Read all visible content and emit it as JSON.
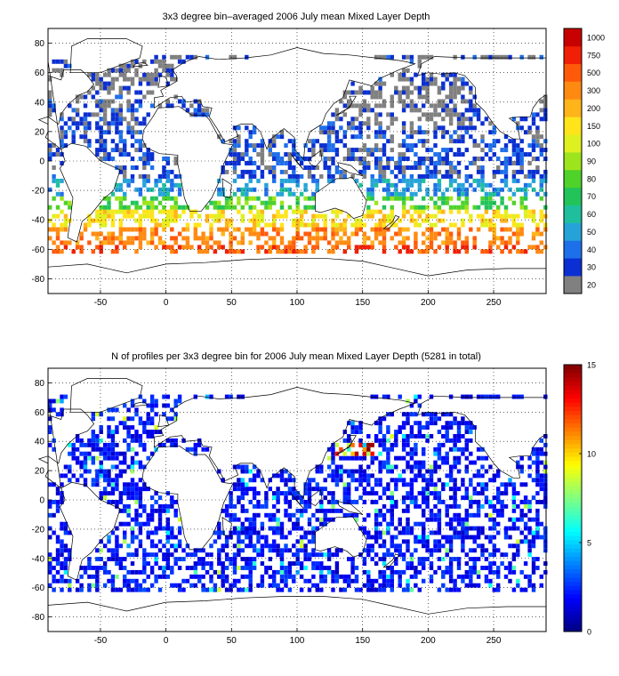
{
  "chart_data": [
    {
      "type": "heatmap",
      "title": "3x3 degree bin–averaged 2006 July mean Mixed Layer Depth",
      "xlabel": "",
      "ylabel": "",
      "xlim": [
        -90,
        290
      ],
      "ylim": [
        -90,
        90
      ],
      "x_ticks": [
        -50,
        0,
        50,
        100,
        150,
        200,
        250
      ],
      "y_ticks": [
        80,
        60,
        40,
        20,
        0,
        -20,
        -40,
        -60,
        -80
      ],
      "grid": true,
      "bin_size_deg": 3,
      "colorbar": {
        "type": "discrete",
        "labels": [
          "20",
          "30",
          "40",
          "50",
          "60",
          "70",
          "80",
          "90",
          "100",
          "150",
          "200",
          "300",
          "500",
          "750",
          "1000"
        ],
        "colors": [
          "#808080",
          "#0a2fd2",
          "#1e6fea",
          "#25a3d8",
          "#1fbf9d",
          "#22c45a",
          "#4fd22a",
          "#9ee41c",
          "#dff020",
          "#ffe41a",
          "#ffb41a",
          "#ff8a12",
          "#ff5a0a",
          "#f01f06",
          "#c80000"
        ]
      },
      "regions": [
        {
          "lon": [
            -45,
            20
          ],
          "lat": [
            45,
            72
          ],
          "category": "20"
        },
        {
          "lon": [
            130,
            230
          ],
          "lat": [
            25,
            52
          ],
          "category": "20"
        },
        {
          "lon": [
            -90,
            290
          ],
          "lat": [
            -12,
            30
          ],
          "category": "30"
        },
        {
          "lon": [
            -90,
            290
          ],
          "lat": [
            -24,
            -12
          ],
          "category": "50"
        },
        {
          "lon": [
            -90,
            290
          ],
          "lat": [
            -34,
            -24
          ],
          "category": "80"
        },
        {
          "lon": [
            -90,
            290
          ],
          "lat": [
            -46,
            -34
          ],
          "category": "150"
        },
        {
          "lon": [
            -90,
            290
          ],
          "lat": [
            -56,
            -46
          ],
          "category": "300"
        },
        {
          "lon": [
            -90,
            290
          ],
          "lat": [
            -62,
            -56
          ],
          "category": "500"
        }
      ]
    },
    {
      "type": "heatmap",
      "title": "N of profiles per 3x3 degree bin for 2006 July mean Mixed Layer Depth  (5281 in total)",
      "xlabel": "",
      "ylabel": "",
      "xlim": [
        -90,
        290
      ],
      "ylim": [
        -90,
        90
      ],
      "x_ticks": [
        -50,
        0,
        50,
        100,
        150,
        200,
        250
      ],
      "y_ticks": [
        80,
        60,
        40,
        20,
        0,
        -20,
        -40,
        -60,
        -80
      ],
      "grid": true,
      "bin_size_deg": 3,
      "total_profiles": 5281,
      "colorbar": {
        "type": "continuous",
        "range": [
          0,
          15
        ],
        "ticks": [
          0,
          5,
          10,
          15
        ],
        "colormap": "jet"
      },
      "regions": [
        {
          "lon": [
            -90,
            290
          ],
          "lat": [
            -62,
            70
          ],
          "typical_count": [
            1,
            3
          ]
        },
        {
          "lon": [
            130,
            160
          ],
          "lat": [
            30,
            40
          ],
          "typical_count": [
            8,
            15
          ]
        }
      ]
    }
  ]
}
